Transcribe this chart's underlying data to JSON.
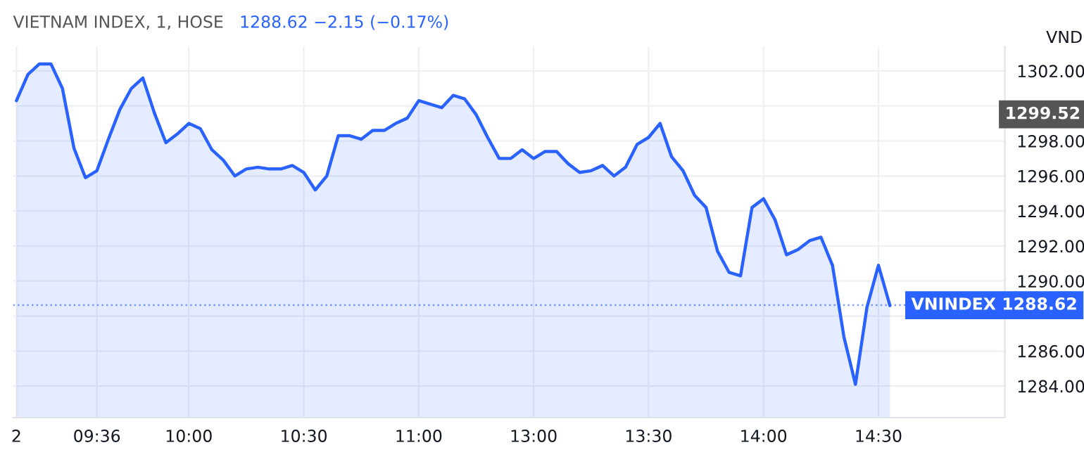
{
  "chart_data": {
    "type": "area",
    "title": "VIETNAM INDEX, 1, HOSE",
    "subtitle": "1288.62 −2.15 (−0.17%)",
    "ylabel": "VND",
    "categories": [
      "2",
      null,
      null,
      null,
      null,
      null,
      null,
      "09:36",
      null,
      null,
      null,
      null,
      null,
      null,
      null,
      "10:00",
      null,
      null,
      null,
      null,
      null,
      null,
      null,
      null,
      null,
      "10:30",
      null,
      null,
      null,
      null,
      null,
      null,
      null,
      null,
      null,
      "11:00",
      null,
      null,
      null,
      null,
      null,
      null,
      null,
      null,
      null,
      "13:00",
      null,
      null,
      null,
      null,
      null,
      null,
      null,
      null,
      null,
      "13:30",
      null,
      null,
      null,
      null,
      null,
      null,
      null,
      null,
      null,
      "14:00",
      null,
      null,
      null,
      null,
      null,
      null,
      null,
      null,
      null,
      "14:30",
      null
    ],
    "series": [
      {
        "color": "#2962ff",
        "values": [
          1300.3,
          1301.8,
          1302.4,
          1302.4,
          1301.0,
          1297.6,
          1295.9,
          1296.3,
          1298.1,
          1299.8,
          1301.0,
          1301.6,
          1299.6,
          1297.9,
          1298.4,
          1299.0,
          1298.7,
          1297.5,
          1296.9,
          1296.0,
          1296.4,
          1296.5,
          1296.4,
          1296.4,
          1296.6,
          1296.2,
          1295.2,
          1296.0,
          1298.3,
          1298.3,
          1298.1,
          1298.6,
          1298.6,
          1299.0,
          1299.3,
          1300.3,
          1300.1,
          1299.9,
          1300.6,
          1300.4,
          1299.5,
          1298.2,
          1297.0,
          1297.0,
          1297.5,
          1297.0,
          1297.4,
          1297.4,
          1296.7,
          1296.2,
          1296.3,
          1296.6,
          1296.0,
          1296.5,
          1297.8,
          1298.2,
          1299.0,
          1297.1,
          1296.3,
          1294.9,
          1294.2,
          1291.7,
          1290.5,
          1290.3,
          1294.2,
          1294.7,
          1293.5,
          1291.5,
          1291.8,
          1292.3,
          1292.5,
          1290.9,
          1286.8,
          1284.1,
          1288.5,
          1290.9,
          1288.6
        ]
      }
    ],
    "ylim": [
      1282.2,
      1303.4
    ],
    "yticks": [
      {
        "value": 1284,
        "label": "1284.00"
      },
      {
        "value": 1286,
        "label": "1286.00"
      },
      {
        "value": 1288,
        "label": null
      },
      {
        "value": 1290,
        "label": "1290.00"
      },
      {
        "value": 1292,
        "label": "1292.00"
      },
      {
        "value": 1294,
        "label": "1294.00"
      },
      {
        "value": 1296,
        "label": "1296.00"
      },
      {
        "value": 1298,
        "label": "1298.00"
      },
      {
        "value": 1300,
        "label": null
      },
      {
        "value": 1302,
        "label": "1302.00"
      }
    ],
    "ref_lines": [
      {
        "axis": "y",
        "value": 1288.62,
        "label": "VNINDEX 1288.62",
        "color": "#2962ff",
        "line_style": "dotted"
      }
    ],
    "annotations": [
      "1299.52"
    ],
    "grid": true,
    "legend": false,
    "line_style": "solid",
    "marker": "none"
  }
}
